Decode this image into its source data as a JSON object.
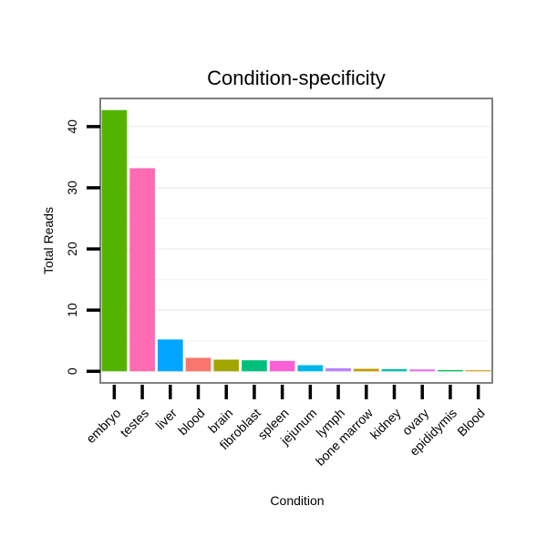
{
  "chart_data": {
    "type": "bar",
    "title": "Condition-specificity",
    "xlabel": "Condition",
    "ylabel": "Total Reads",
    "ylim": [
      -1.9,
      44.6
    ],
    "yticks": [
      0,
      10,
      20,
      30,
      40
    ],
    "grid": true,
    "categories": [
      "embryo",
      "testes",
      "liver",
      "blood",
      "brain",
      "fibroblast",
      "spleen",
      "jejunum",
      "lymph",
      "bone marrow",
      "kidney",
      "ovary",
      "epididymis",
      "Blood"
    ],
    "values": [
      42.7,
      33.2,
      5.2,
      2.2,
      1.9,
      1.8,
      1.7,
      1.0,
      0.5,
      0.4,
      0.35,
      0.3,
      0.2,
      0.15
    ],
    "colors": [
      "#53B400",
      "#FF6BB2",
      "#00A5FF",
      "#F8766D",
      "#A3A500",
      "#00BF7D",
      "#FB61D7",
      "#00B6EB",
      "#B983FF",
      "#C49A00",
      "#00C0AF",
      "#E76BF3",
      "#00BC56",
      "#D89000"
    ]
  }
}
